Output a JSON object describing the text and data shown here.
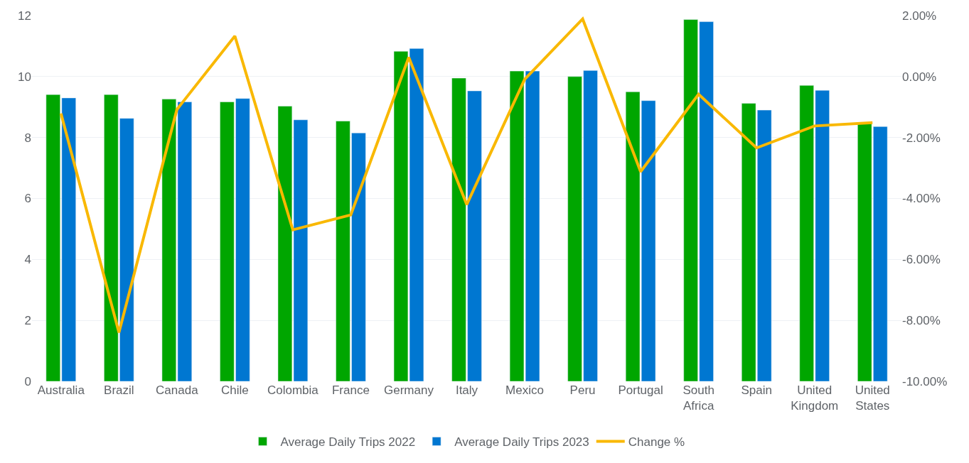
{
  "chart_data": {
    "type": "bar",
    "categories": [
      "Australia",
      "Brazil",
      "Canada",
      "Chile",
      "Colombia",
      "France",
      "Germany",
      "Italy",
      "Mexico",
      "Peru",
      "Portugal",
      "South\nAfrica",
      "Spain",
      "United\nKingdom",
      "United\nStates"
    ],
    "series": [
      {
        "name": "Average Daily Trips 2022",
        "color": "#00a600",
        "values": [
          9.41,
          9.41,
          9.26,
          9.17,
          9.03,
          8.54,
          10.83,
          9.95,
          10.18,
          10.0,
          9.5,
          11.87,
          9.12,
          9.71,
          8.49
        ]
      },
      {
        "name": "Average Daily Trips 2023",
        "color": "#0077d1",
        "values": [
          9.3,
          8.63,
          9.17,
          9.28,
          8.58,
          8.15,
          10.92,
          9.53,
          10.18,
          10.2,
          9.21,
          11.8,
          8.9,
          9.55,
          8.36
        ]
      },
      {
        "name": "Change %",
        "type": "line",
        "axis": "y2",
        "color": "#f9b800",
        "values": [
          -1.21,
          -8.4,
          -1.08,
          1.33,
          -5.03,
          -4.54,
          0.63,
          -4.2,
          -0.09,
          1.89,
          -3.12,
          -0.58,
          -2.34,
          -1.62,
          -1.51
        ]
      }
    ],
    "ylim": [
      0,
      12
    ],
    "yticks": [
      0,
      2,
      4,
      6,
      8,
      10,
      12
    ],
    "y2lim": [
      -10,
      2
    ],
    "y2ticks": [
      {
        "value": -10,
        "label": "-10.00%"
      },
      {
        "value": -8,
        "label": "-8.00%"
      },
      {
        "value": -6,
        "label": "-6.00%"
      },
      {
        "value": -4,
        "label": "-4.00%"
      },
      {
        "value": -2,
        "label": "-2.00%"
      },
      {
        "value": 0,
        "label": "0.00%"
      },
      {
        "value": 2,
        "label": "2.00%"
      }
    ],
    "grid": "y",
    "legend": "bottom",
    "marker": "none",
    "line_style": "solid"
  }
}
